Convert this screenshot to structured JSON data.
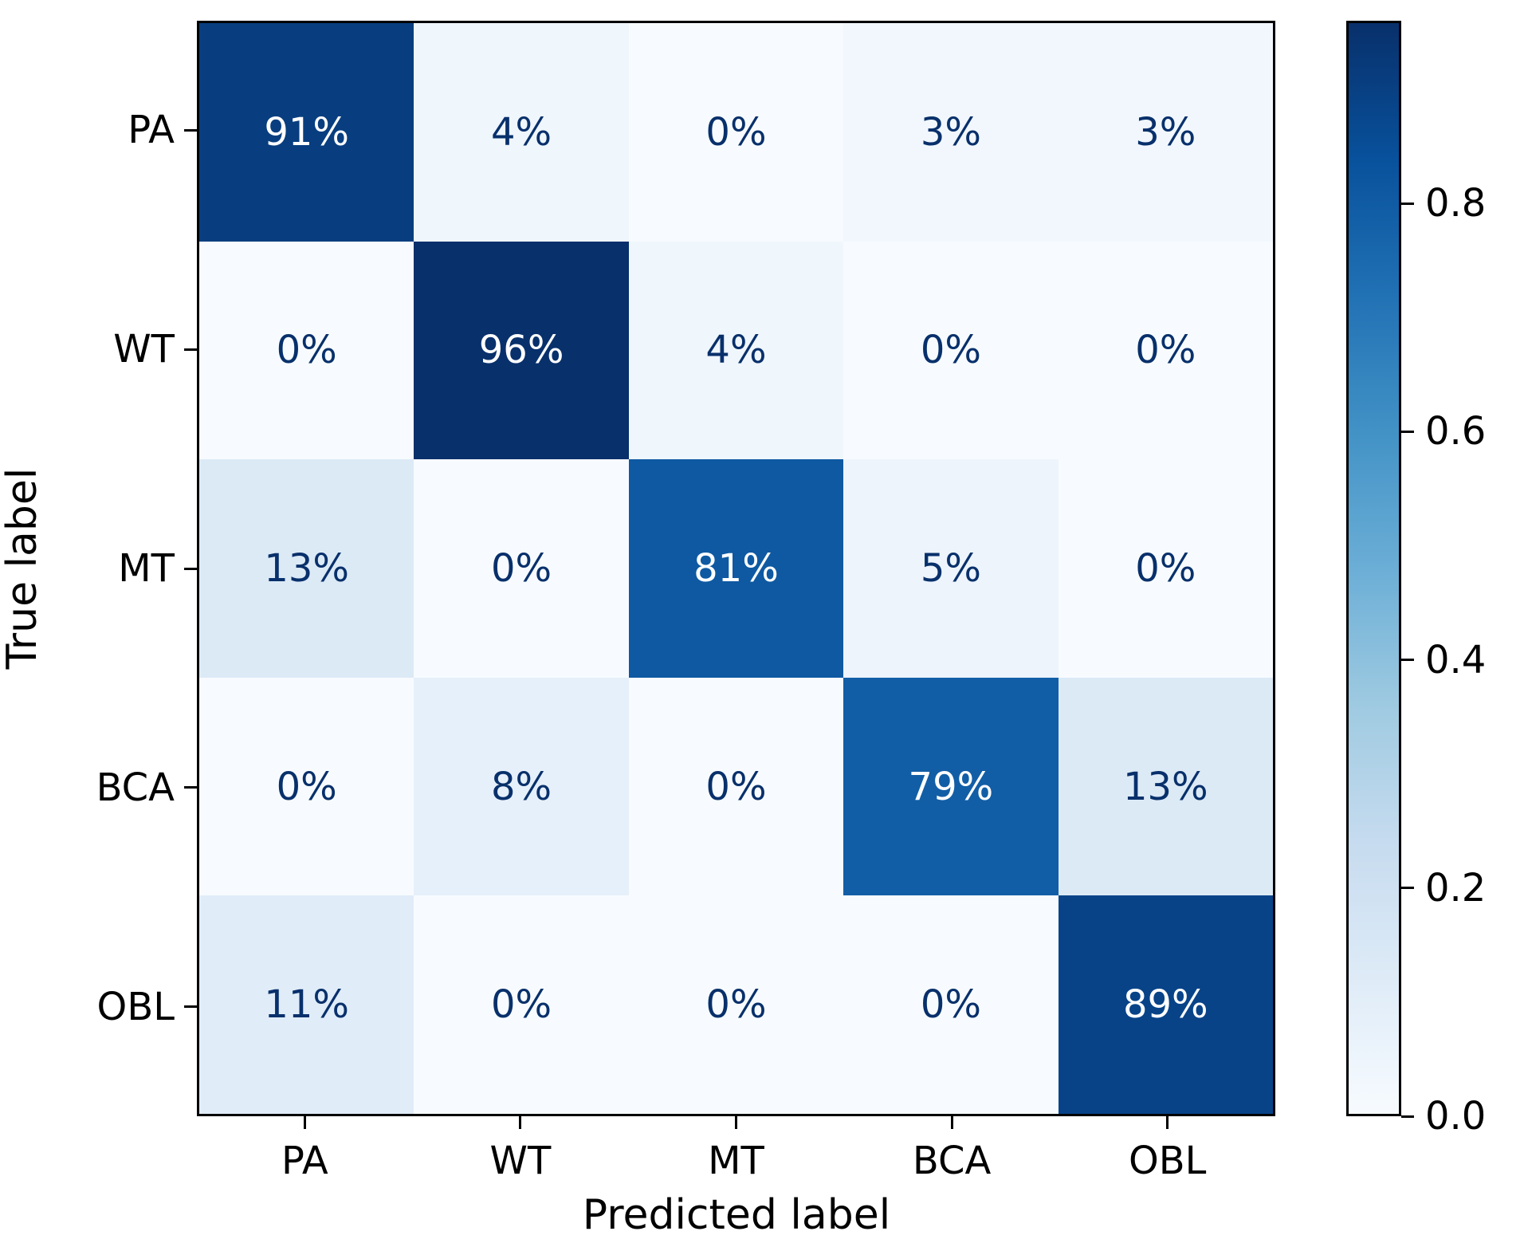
{
  "figure": {
    "xlabel": "Predicted label",
    "ylabel": "True label"
  },
  "chart_data": {
    "type": "heatmap",
    "subtype": "confusion-matrix",
    "x_categories": [
      "PA",
      "WT",
      "MT",
      "BCA",
      "OBL"
    ],
    "y_categories": [
      "PA",
      "WT",
      "MT",
      "BCA",
      "OBL"
    ],
    "xlabel": "Predicted label",
    "ylabel": "True label",
    "values_percent": [
      [
        91,
        4,
        0,
        3,
        3
      ],
      [
        0,
        96,
        4,
        0,
        0
      ],
      [
        13,
        0,
        81,
        5,
        0
      ],
      [
        0,
        8,
        0,
        79,
        13
      ],
      [
        11,
        0,
        0,
        0,
        89
      ]
    ],
    "cell_labels": [
      [
        "91%",
        "4%",
        "0%",
        "3%",
        "3%"
      ],
      [
        "0%",
        "96%",
        "4%",
        "0%",
        "0%"
      ],
      [
        "13%",
        "0%",
        "81%",
        "5%",
        "0%"
      ],
      [
        "0%",
        "8%",
        "0%",
        "79%",
        "13%"
      ],
      [
        "11%",
        "0%",
        "0%",
        "0%",
        "89%"
      ]
    ],
    "cell_colors": [
      [
        "#083e7f",
        "#eff6fc",
        "#f7fbff",
        "#f1f7fd",
        "#f1f7fd"
      ],
      [
        "#f7fbff",
        "#08306b",
        "#eff6fc",
        "#f7fbff",
        "#f7fbff"
      ],
      [
        "#dceaf6",
        "#f7fbff",
        "#0e59a2",
        "#edf4fc",
        "#f7fbff"
      ],
      [
        "#f7fbff",
        "#e6f0fa",
        "#f7fbff",
        "#125ea6",
        "#dceaf6"
      ],
      [
        "#e0ecf8",
        "#f7fbff",
        "#f7fbff",
        "#f7fbff",
        "#084388"
      ]
    ],
    "cell_text_colors": [
      [
        "#ffffff",
        "#08306b",
        "#08306b",
        "#08306b",
        "#08306b"
      ],
      [
        "#08306b",
        "#ffffff",
        "#08306b",
        "#08306b",
        "#08306b"
      ],
      [
        "#08306b",
        "#08306b",
        "#ffffff",
        "#08306b",
        "#08306b"
      ],
      [
        "#08306b",
        "#08306b",
        "#08306b",
        "#ffffff",
        "#08306b"
      ],
      [
        "#08306b",
        "#08306b",
        "#08306b",
        "#08306b",
        "#ffffff"
      ]
    ],
    "colormap": "Blues",
    "colormap_stops": [
      "#f7fbff",
      "#deebf7",
      "#c6dbef",
      "#9ecae1",
      "#6baed6",
      "#4292c6",
      "#2171b5",
      "#08519c",
      "#08306b"
    ],
    "colorbar": {
      "vmin": 0.0,
      "vmax": 0.96,
      "tick_values": [
        0.0,
        0.2,
        0.4,
        0.6,
        0.8
      ],
      "tick_labels": [
        "0.0",
        "0.2",
        "0.4",
        "0.6",
        "0.8"
      ]
    },
    "grid": false,
    "legend": false,
    "title": ""
  }
}
